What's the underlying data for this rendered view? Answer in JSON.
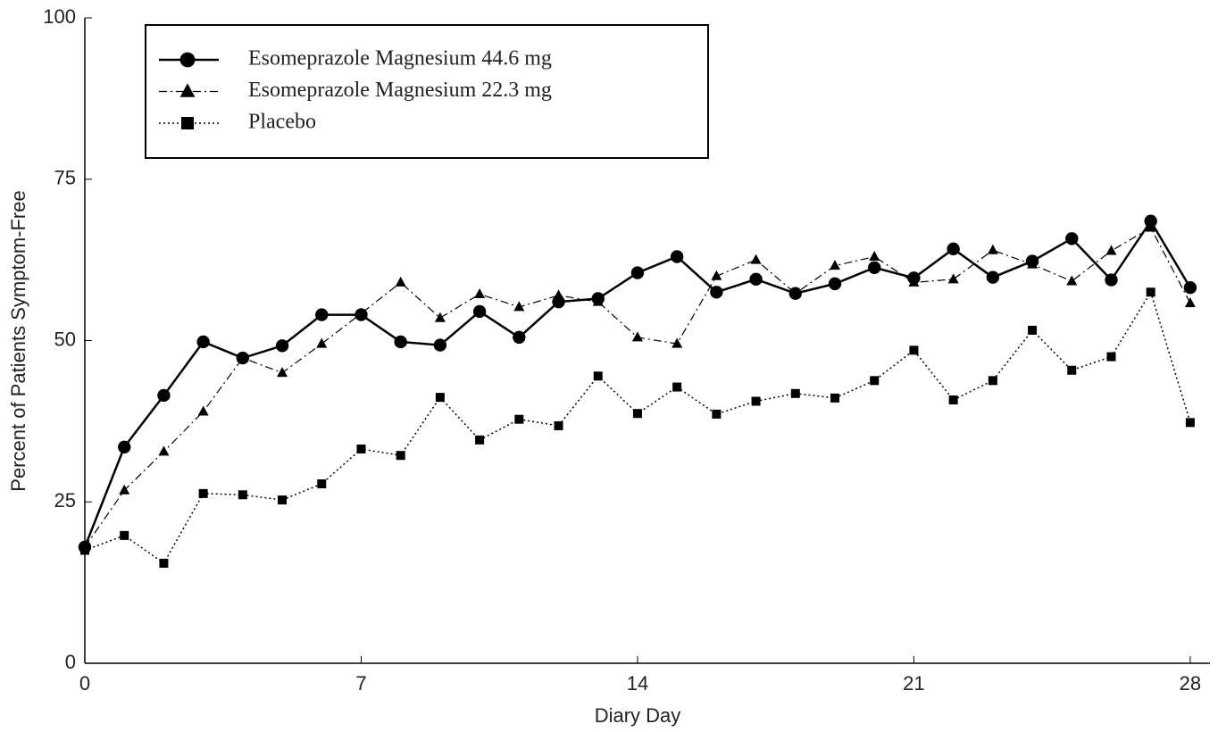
{
  "chart_data": {
    "type": "line",
    "x_label": "Diary Day",
    "y_label": "Percent of Patients Symptom-Free",
    "x": [
      0,
      1,
      2,
      3,
      4,
      5,
      6,
      7,
      8,
      9,
      10,
      11,
      12,
      13,
      14,
      15,
      16,
      17,
      18,
      19,
      20,
      21,
      22,
      23,
      24,
      25,
      26,
      27,
      28
    ],
    "series": [
      {
        "name": "Esomeprazole Magnesium 44.6 mg",
        "color": "#000000",
        "marker": "circle",
        "dash": "solid",
        "values": [
          18,
          33.5,
          41.5,
          49.8,
          47.3,
          49.2,
          54,
          54,
          49.8,
          49.3,
          54.5,
          50.5,
          56,
          56.5,
          60.5,
          63,
          57.5,
          59.5,
          57.3,
          58.8,
          61.3,
          59.7,
          64.2,
          59.8,
          62.3,
          65.8,
          59.4,
          68.5,
          58.2
        ]
      },
      {
        "name": "Esomeprazole Magnesium 22.3 mg",
        "color": "#000000",
        "marker": "triangle",
        "dash": "dashed",
        "values": [
          18,
          26.8,
          32.8,
          39,
          47.3,
          45,
          49.5,
          54.2,
          59,
          53.5,
          57.2,
          55.2,
          57,
          56,
          50.5,
          49.5,
          60,
          62.5,
          57.3,
          61.6,
          63,
          59,
          59.5,
          64,
          61.8,
          59.2,
          63.9,
          67.5,
          55.8
        ]
      },
      {
        "name": "Placebo",
        "color": "#000000",
        "marker": "square",
        "dash": "dotted",
        "values": [
          17.5,
          19.8,
          15.5,
          26.3,
          26.1,
          25.3,
          27.8,
          33.2,
          32.2,
          41.2,
          34.6,
          37.8,
          36.8,
          44.5,
          38.7,
          42.8,
          38.6,
          40.6,
          41.8,
          41.1,
          43.8,
          48.5,
          40.8,
          43.8,
          51.6,
          45.4,
          47.5,
          57.5,
          37.3
        ]
      }
    ],
    "xlim": [
      0,
      28.5
    ],
    "xticks": [
      0,
      7,
      14,
      21,
      28
    ],
    "ylim": [
      0,
      100
    ],
    "yticks": [
      0,
      25,
      50,
      75,
      100
    ],
    "grid": false,
    "legend": "top-left"
  }
}
